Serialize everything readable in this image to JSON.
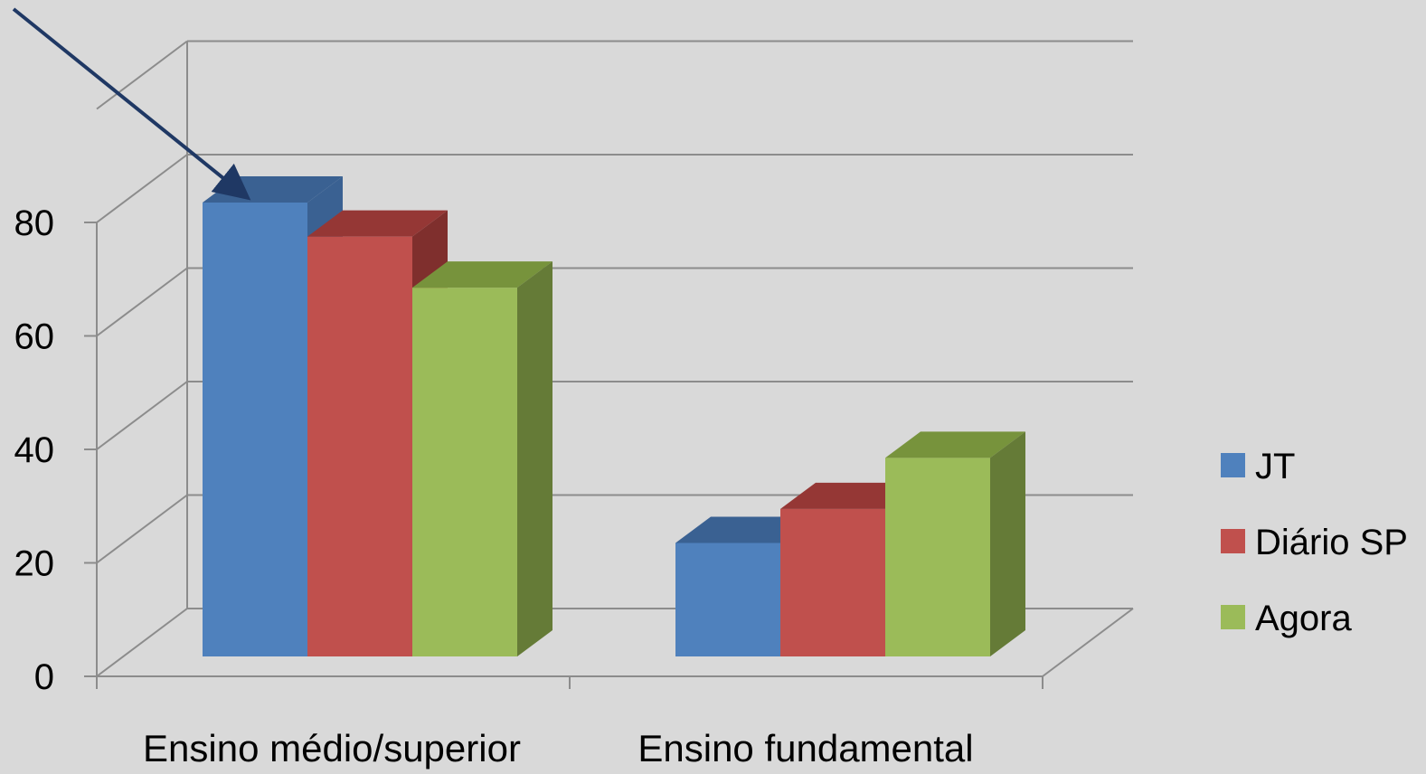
{
  "chart_data": {
    "type": "bar",
    "title": "",
    "xlabel": "",
    "ylabel": "",
    "categories": [
      "Ensino médio/superior",
      "Ensino fundamental"
    ],
    "series": [
      {
        "name": "JT",
        "values": [
          80,
          20
        ],
        "color": "#4f81bd",
        "top_color": "#3a6192",
        "side_color": "#3a6192"
      },
      {
        "name": "Diário SP",
        "values": [
          74,
          26
        ],
        "color": "#c0504d",
        "top_color": "#953735",
        "side_color": "#7f2f2d"
      },
      {
        "name": "Agora",
        "values": [
          65,
          35
        ],
        "color": "#9bbb59",
        "top_color": "#77933c",
        "side_color": "#657b37"
      }
    ],
    "ylim": [
      0,
      80
    ],
    "yticks": [
      0,
      20,
      40,
      60,
      80
    ],
    "grid": true,
    "view": "3d",
    "legend_position": "right",
    "annotation": "arrow pointing to the JT bar of Ensino médio/superior"
  }
}
